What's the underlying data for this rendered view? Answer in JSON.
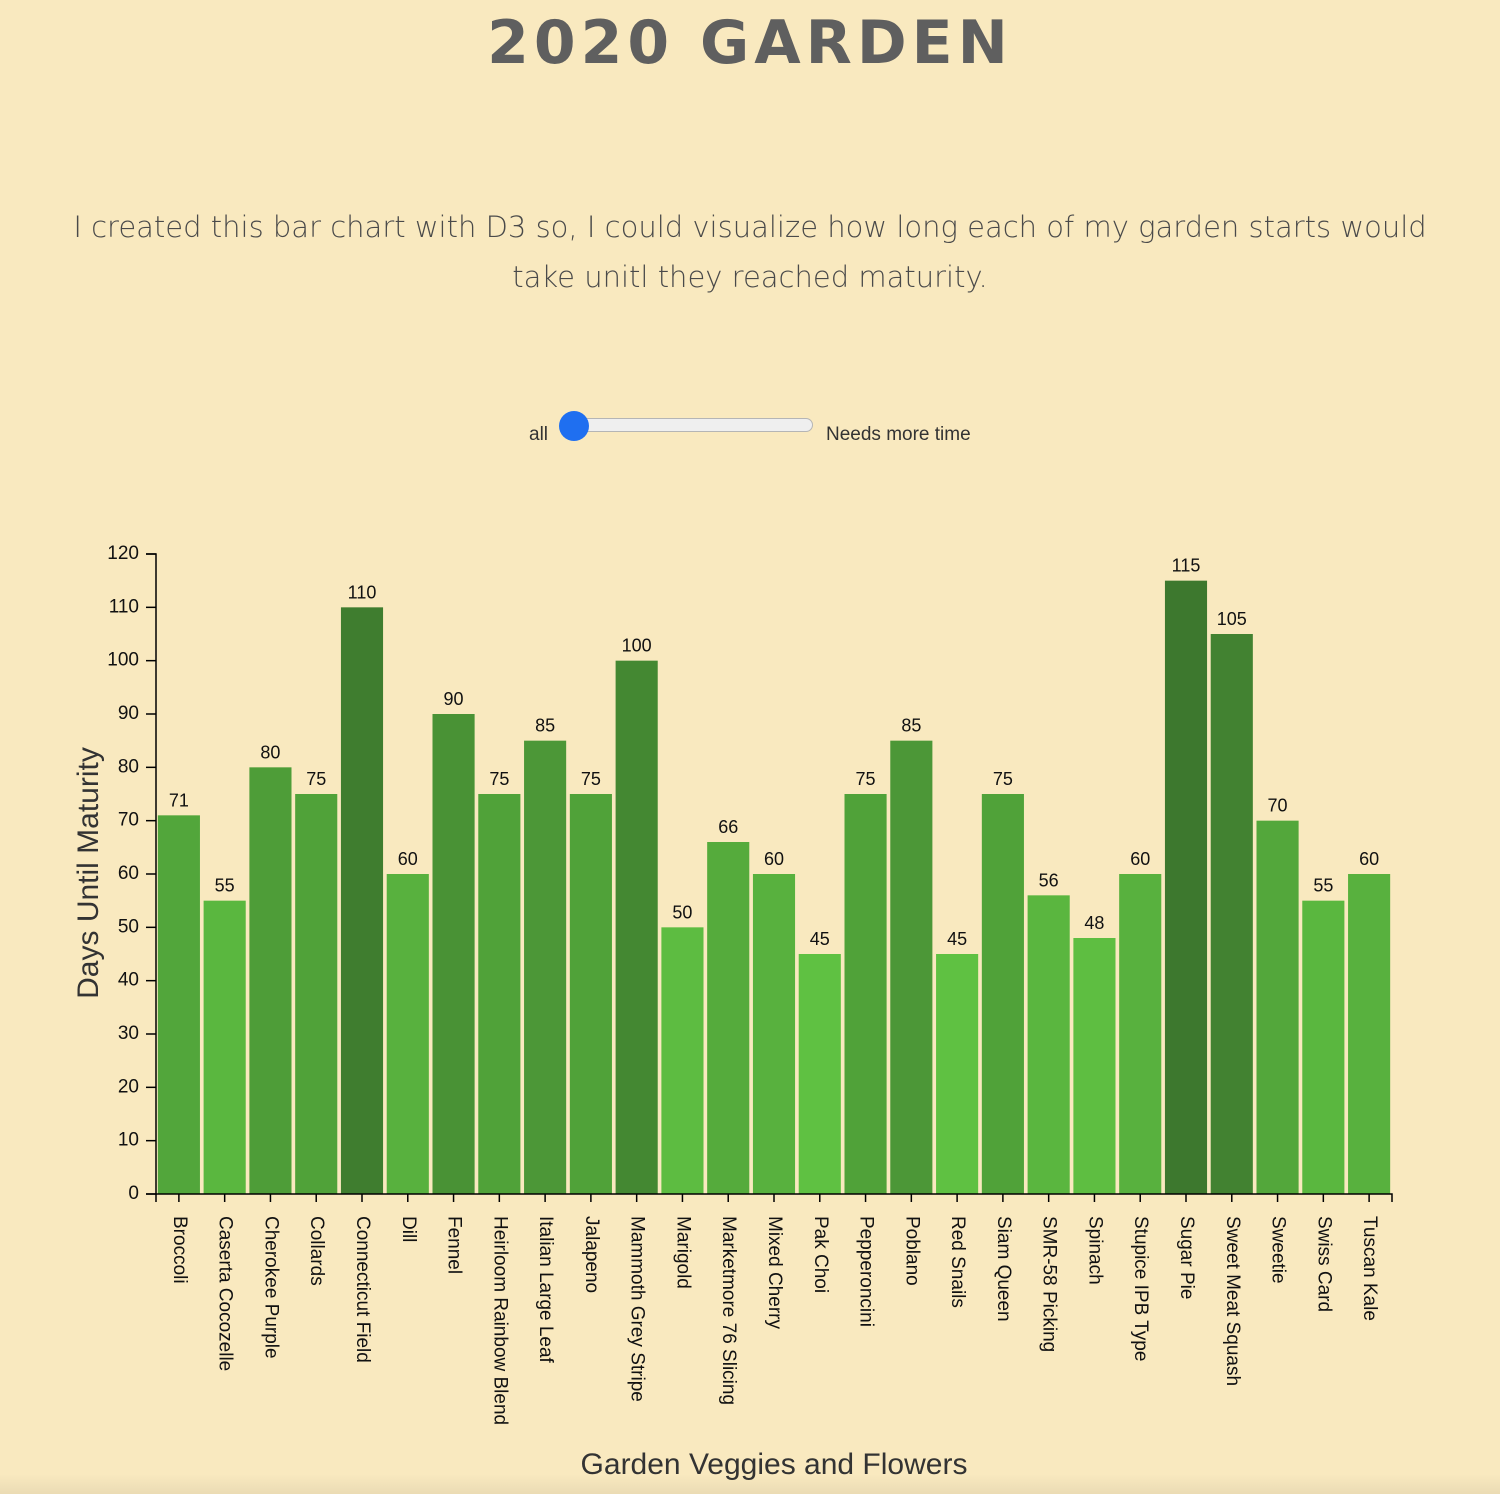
{
  "header": {
    "title": "2020 GARDEN",
    "intro": "I created this bar chart with D3 so, I could visualize how long each of my garden starts would take unitl they reached maturity."
  },
  "filter": {
    "left_label": "all",
    "right_label": "Needs more time",
    "value": 0
  },
  "chart_data": {
    "type": "bar",
    "categories": [
      "Broccoli",
      "Caserta Cocozelle",
      "Cherokee Purple",
      "Collards",
      "Connecticut Field",
      "Dill",
      "Fennel",
      "Heirloom Rainbow Blend",
      "Italian Large Leaf",
      "Jalapeno",
      "Mammoth Grey Stripe",
      "Marigold",
      "Marketmore 76 Slicing",
      "Mixed Cherry",
      "Pak Choi",
      "Pepperoncini",
      "Poblano",
      "Red Snails",
      "Siam Queen",
      "SMR-58 Picking",
      "Spinach",
      "Stupice IPB Type",
      "Sugar Pie",
      "Sweet Meat Squash",
      "Sweetie",
      "Swiss Card",
      "Tuscan Kale"
    ],
    "values": [
      71,
      55,
      80,
      75,
      110,
      60,
      90,
      75,
      85,
      75,
      100,
      50,
      66,
      60,
      45,
      75,
      85,
      45,
      75,
      56,
      48,
      60,
      115,
      105,
      70,
      55,
      60
    ],
    "xlabel": "Garden Veggies and Flowers",
    "ylabel": "Days Until Maturity",
    "ylim": [
      0,
      120
    ],
    "yticks": [
      0,
      10,
      20,
      30,
      40,
      50,
      60,
      70,
      80,
      90,
      100,
      110,
      120
    ],
    "data_labels": true,
    "grid": false,
    "legend": "none",
    "color_low": "#5fc142",
    "color_high": "#3d782e"
  }
}
